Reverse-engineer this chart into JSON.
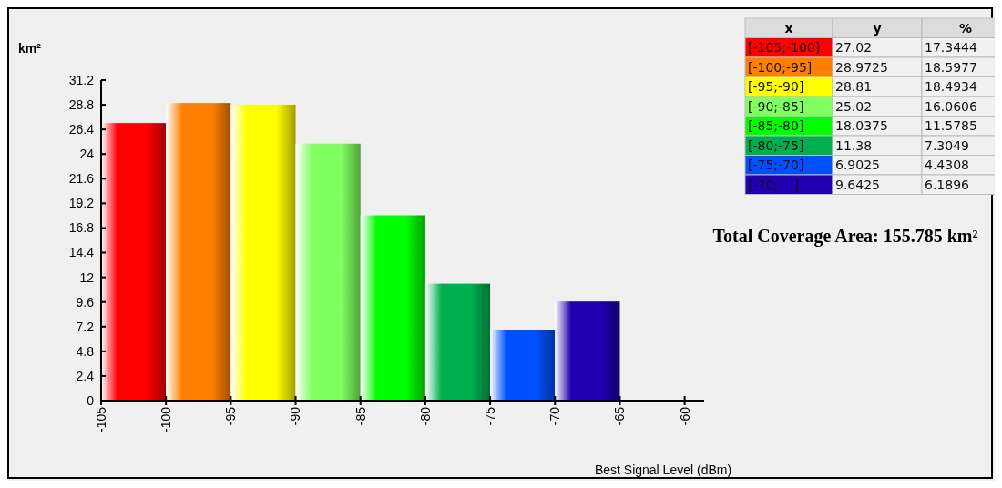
{
  "chart_data": [
    {
      "type": "histogram",
      "xlabel": "Best Signal Level (dBm)",
      "ylabel": "km²",
      "bins": [
        -105,
        -100,
        -95,
        -90,
        -85,
        -80,
        -75,
        -70,
        -65
      ],
      "values": [
        27.02,
        28.9725,
        28.81,
        25.02,
        18.0375,
        11.38,
        6.9025,
        9.6425
      ],
      "colors": [
        "#ff0000",
        "#ff8000",
        "#ffff00",
        "#80ff60",
        "#00ff00",
        "#00b050",
        "#0050ff",
        "#2000b0"
      ],
      "xlim": [
        -105,
        -58.5
      ],
      "xticks": [
        -105,
        -100,
        -95,
        -90,
        -85,
        -80,
        -75,
        -70,
        -65,
        -60
      ],
      "ylim": [
        0,
        31.2
      ],
      "yticks": [
        0,
        2.4,
        4.8,
        7.2,
        9.6,
        12,
        14.4,
        16.8,
        19.2,
        21.6,
        24,
        26.4,
        28.8,
        31.2
      ],
      "grid": false,
      "annotations": [
        "Total Coverage Area: 155.785 km²"
      ]
    },
    {
      "type": "other",
      "xlabel": "x",
      "data_labels": true,
      "categories": [
        "[-105;-100]",
        "[-100;-95]",
        "[-95;-90]",
        "[-90;-85]",
        "[-85;-80]",
        "[-80;-75]",
        "[-75;-70]",
        "[-70;    ]"
      ],
      "colors": [
        "#ff0000",
        "#ff8000",
        "#ffff00",
        "#80ff60",
        "#00ff00",
        "#00b050",
        "#0050ff",
        "#2000b0"
      ],
      "series": [
        {
          "name": "y",
          "values": [
            27.02,
            28.9725,
            28.81,
            25.02,
            18.0375,
            11.38,
            6.9025,
            9.6425
          ]
        },
        {
          "name": "%",
          "values": [
            17.3444,
            18.5977,
            18.4934,
            16.0606,
            11.5785,
            7.3049,
            4.4308,
            6.1896
          ]
        }
      ]
    }
  ]
}
